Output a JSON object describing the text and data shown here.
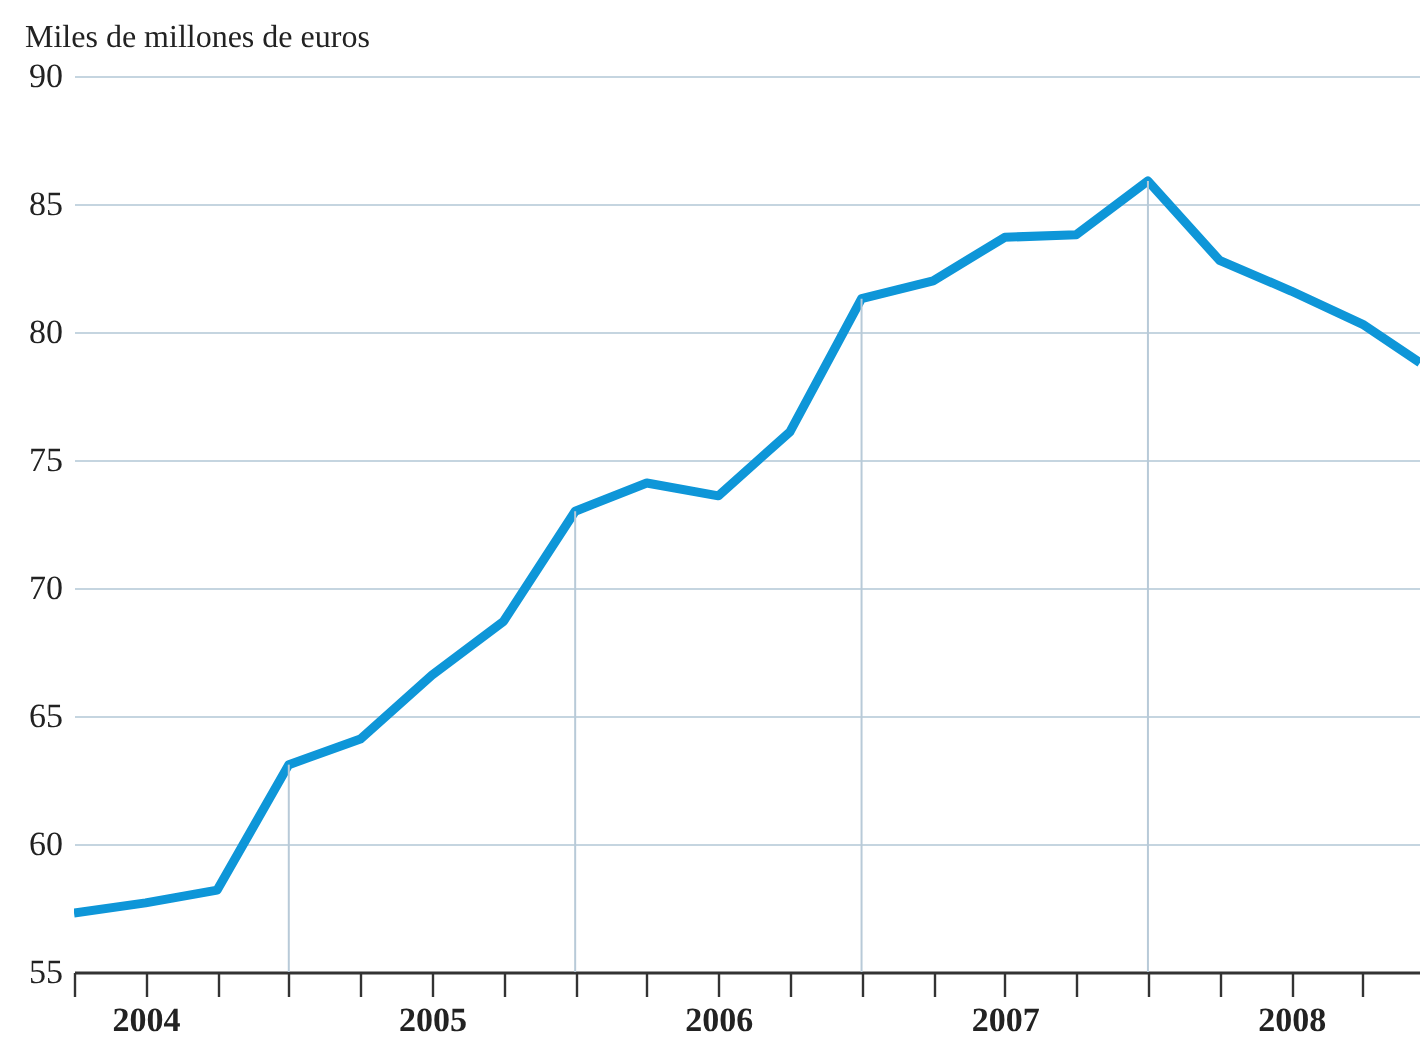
{
  "chart_data": {
    "type": "line",
    "ylabel": "Miles de millones de euros",
    "x": [
      2003.75,
      2004.0,
      2004.25,
      2004.5,
      2004.75,
      2005.0,
      2005.25,
      2005.5,
      2005.75,
      2006.0,
      2006.25,
      2006.5,
      2006.75,
      2007.0,
      2007.25,
      2007.5,
      2007.75,
      2008.0,
      2008.25,
      2008.45
    ],
    "series": [
      {
        "color": "#0e96d8",
        "values": [
          57.3,
          57.7,
          58.2,
          63.1,
          64.1,
          66.6,
          68.7,
          73.0,
          74.1,
          73.6,
          76.1,
          81.3,
          82.0,
          83.7,
          83.8,
          85.9,
          82.8,
          81.6,
          80.3,
          78.8
        ]
      }
    ],
    "xlim": [
      2003.75,
      2008.45
    ],
    "xticks": [
      {
        "value": 2003.75,
        "label": null
      },
      {
        "value": 2004,
        "label": "2004"
      },
      {
        "value": 2004.25,
        "label": null
      },
      {
        "value": 2004.5,
        "label": null
      },
      {
        "value": 2004.75,
        "label": null
      },
      {
        "value": 2005,
        "label": "2005"
      },
      {
        "value": 2005.25,
        "label": null
      },
      {
        "value": 2005.5,
        "label": null
      },
      {
        "value": 2005.75,
        "label": null
      },
      {
        "value": 2006,
        "label": "2006"
      },
      {
        "value": 2006.25,
        "label": null
      },
      {
        "value": 2006.5,
        "label": null
      },
      {
        "value": 2006.75,
        "label": null
      },
      {
        "value": 2007,
        "label": "2007"
      },
      {
        "value": 2007.25,
        "label": null
      },
      {
        "value": 2007.5,
        "label": null
      },
      {
        "value": 2007.75,
        "label": null
      },
      {
        "value": 2008,
        "label": "2008"
      },
      {
        "value": 2008.25,
        "label": null
      }
    ],
    "ylim": [
      55,
      90
    ],
    "yticks": [
      55,
      60,
      65,
      70,
      75,
      80,
      85,
      90
    ],
    "grid": "y",
    "legend": false,
    "marker": "none",
    "line_style": "solid",
    "ref_lines": [
      {
        "axis": "x",
        "value": 2004.5,
        "color": "#b8cad8"
      },
      {
        "axis": "x",
        "value": 2005.5,
        "color": "#b8cad8"
      },
      {
        "axis": "x",
        "value": 2006.5,
        "color": "#b8cad8"
      },
      {
        "axis": "x",
        "value": 2007.5,
        "color": "#b8cad8"
      }
    ]
  }
}
